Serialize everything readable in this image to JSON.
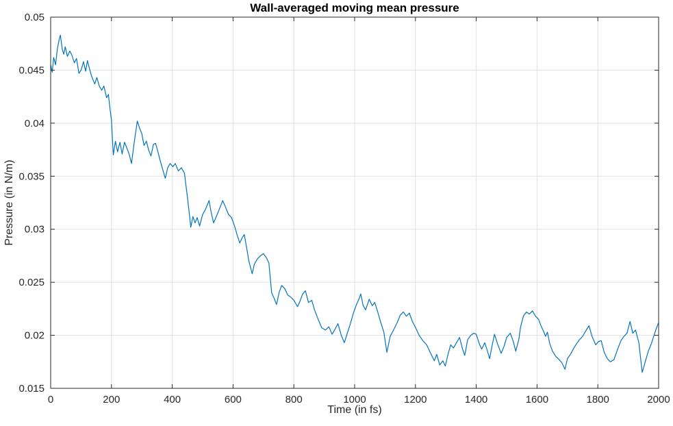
{
  "figure": {
    "background": "#ffffff",
    "axes_color": "#262626",
    "grid_color": "#e0e0e0",
    "line_color": "#0072BD"
  },
  "chart_data": {
    "type": "line",
    "title": "Wall-averaged moving mean pressure",
    "xlabel": "Time (in fs)",
    "ylabel": "Pressure (in N/m)",
    "xlim": [
      0,
      2000
    ],
    "ylim": [
      0.015,
      0.05
    ],
    "grid": "on",
    "legend": "none",
    "x_ticks": [
      {
        "value": 0,
        "label": "0"
      },
      {
        "value": 200,
        "label": "200"
      },
      {
        "value": 400,
        "label": "400"
      },
      {
        "value": 600,
        "label": "600"
      },
      {
        "value": 800,
        "label": "800"
      },
      {
        "value": 1000,
        "label": "1000"
      },
      {
        "value": 1200,
        "label": "1200"
      },
      {
        "value": 1400,
        "label": "1400"
      },
      {
        "value": 1600,
        "label": "1600"
      },
      {
        "value": 1800,
        "label": "1800"
      },
      {
        "value": 2000,
        "label": "2000"
      }
    ],
    "y_ticks": [
      {
        "value": 0.015,
        "label": "0.015"
      },
      {
        "value": 0.02,
        "label": "0.02"
      },
      {
        "value": 0.025,
        "label": "0.025"
      },
      {
        "value": 0.03,
        "label": "0.03"
      },
      {
        "value": 0.035,
        "label": "0.035"
      },
      {
        "value": 0.04,
        "label": "0.04"
      },
      {
        "value": 0.045,
        "label": "0.045"
      },
      {
        "value": 0.05,
        "label": "0.05"
      }
    ],
    "series": [
      {
        "name": "wall-averaged moving mean pressure",
        "color": "#0072BD",
        "points": [
          [
            0,
            0.0455
          ],
          [
            5,
            0.0448
          ],
          [
            10,
            0.0462
          ],
          [
            16,
            0.0455
          ],
          [
            22,
            0.047
          ],
          [
            28,
            0.0479
          ],
          [
            32,
            0.0483
          ],
          [
            38,
            0.047
          ],
          [
            43,
            0.0465
          ],
          [
            48,
            0.0472
          ],
          [
            55,
            0.0463
          ],
          [
            63,
            0.0468
          ],
          [
            70,
            0.0464
          ],
          [
            78,
            0.0457
          ],
          [
            85,
            0.0461
          ],
          [
            93,
            0.0447
          ],
          [
            100,
            0.045
          ],
          [
            108,
            0.0458
          ],
          [
            115,
            0.0449
          ],
          [
            121,
            0.0459
          ],
          [
            127,
            0.0452
          ],
          [
            135,
            0.0444
          ],
          [
            145,
            0.0437
          ],
          [
            152,
            0.0443
          ],
          [
            160,
            0.0435
          ],
          [
            168,
            0.0431
          ],
          [
            175,
            0.0435
          ],
          [
            184,
            0.0424
          ],
          [
            190,
            0.0427
          ],
          [
            195,
            0.0414
          ],
          [
            200,
            0.0403
          ],
          [
            206,
            0.037
          ],
          [
            213,
            0.0383
          ],
          [
            220,
            0.0373
          ],
          [
            228,
            0.0382
          ],
          [
            235,
            0.0371
          ],
          [
            243,
            0.0382
          ],
          [
            250,
            0.0377
          ],
          [
            258,
            0.0371
          ],
          [
            266,
            0.0362
          ],
          [
            274,
            0.038
          ],
          [
            285,
            0.0402
          ],
          [
            293,
            0.0395
          ],
          [
            300,
            0.039
          ],
          [
            307,
            0.0379
          ],
          [
            315,
            0.0383
          ],
          [
            322,
            0.0375
          ],
          [
            330,
            0.0369
          ],
          [
            338,
            0.038
          ],
          [
            345,
            0.0381
          ],
          [
            352,
            0.0374
          ],
          [
            360,
            0.0365
          ],
          [
            370,
            0.0355
          ],
          [
            377,
            0.0348
          ],
          [
            385,
            0.0358
          ],
          [
            393,
            0.0362
          ],
          [
            402,
            0.0359
          ],
          [
            410,
            0.0362
          ],
          [
            420,
            0.0355
          ],
          [
            430,
            0.0358
          ],
          [
            440,
            0.0353
          ],
          [
            450,
            0.033
          ],
          [
            456,
            0.0315
          ],
          [
            461,
            0.0302
          ],
          [
            468,
            0.0312
          ],
          [
            475,
            0.0306
          ],
          [
            482,
            0.0311
          ],
          [
            490,
            0.0303
          ],
          [
            500,
            0.0314
          ],
          [
            508,
            0.0318
          ],
          [
            514,
            0.0322
          ],
          [
            521,
            0.0327
          ],
          [
            528,
            0.0316
          ],
          [
            536,
            0.0306
          ],
          [
            545,
            0.0312
          ],
          [
            555,
            0.0319
          ],
          [
            566,
            0.0327
          ],
          [
            575,
            0.0321
          ],
          [
            585,
            0.0314
          ],
          [
            595,
            0.0311
          ],
          [
            605,
            0.0303
          ],
          [
            612,
            0.0296
          ],
          [
            622,
            0.0287
          ],
          [
            630,
            0.0292
          ],
          [
            637,
            0.0295
          ],
          [
            645,
            0.0282
          ],
          [
            652,
            0.027
          ],
          [
            663,
            0.0258
          ],
          [
            670,
            0.0267
          ],
          [
            680,
            0.0272
          ],
          [
            690,
            0.0275
          ],
          [
            700,
            0.0277
          ],
          [
            710,
            0.0273
          ],
          [
            718,
            0.0268
          ],
          [
            727,
            0.024
          ],
          [
            735,
            0.0235
          ],
          [
            743,
            0.0229
          ],
          [
            752,
            0.0241
          ],
          [
            760,
            0.0247
          ],
          [
            770,
            0.0244
          ],
          [
            780,
            0.0238
          ],
          [
            790,
            0.0236
          ],
          [
            800,
            0.0233
          ],
          [
            812,
            0.0227
          ],
          [
            820,
            0.0232
          ],
          [
            829,
            0.0239
          ],
          [
            838,
            0.0242
          ],
          [
            848,
            0.0231
          ],
          [
            859,
            0.0233
          ],
          [
            868,
            0.0224
          ],
          [
            880,
            0.0215
          ],
          [
            892,
            0.0207
          ],
          [
            904,
            0.0205
          ],
          [
            915,
            0.0208
          ],
          [
            926,
            0.0201
          ],
          [
            936,
            0.0206
          ],
          [
            945,
            0.0211
          ],
          [
            956,
            0.02
          ],
          [
            966,
            0.0193
          ],
          [
            976,
            0.0202
          ],
          [
            986,
            0.0211
          ],
          [
            996,
            0.0221
          ],
          [
            1006,
            0.0229
          ],
          [
            1014,
            0.0234
          ],
          [
            1020,
            0.0239
          ],
          [
            1028,
            0.0228
          ],
          [
            1036,
            0.0224
          ],
          [
            1048,
            0.0234
          ],
          [
            1058,
            0.0228
          ],
          [
            1066,
            0.0231
          ],
          [
            1076,
            0.0222
          ],
          [
            1086,
            0.0212
          ],
          [
            1096,
            0.0203
          ],
          [
            1106,
            0.0184
          ],
          [
            1117,
            0.0199
          ],
          [
            1128,
            0.0205
          ],
          [
            1140,
            0.0212
          ],
          [
            1150,
            0.0219
          ],
          [
            1160,
            0.0222
          ],
          [
            1170,
            0.0218
          ],
          [
            1180,
            0.0221
          ],
          [
            1190,
            0.0213
          ],
          [
            1201,
            0.0207
          ],
          [
            1212,
            0.02
          ],
          [
            1224,
            0.0195
          ],
          [
            1237,
            0.0191
          ],
          [
            1250,
            0.0183
          ],
          [
            1262,
            0.0176
          ],
          [
            1270,
            0.0182
          ],
          [
            1280,
            0.0172
          ],
          [
            1290,
            0.0176
          ],
          [
            1298,
            0.0171
          ],
          [
            1308,
            0.0183
          ],
          [
            1316,
            0.0191
          ],
          [
            1325,
            0.0188
          ],
          [
            1335,
            0.0193
          ],
          [
            1345,
            0.0198
          ],
          [
            1355,
            0.0187
          ],
          [
            1362,
            0.0181
          ],
          [
            1372,
            0.0196
          ],
          [
            1382,
            0.02
          ],
          [
            1392,
            0.0202
          ],
          [
            1400,
            0.0201
          ],
          [
            1410,
            0.0192
          ],
          [
            1418,
            0.0187
          ],
          [
            1428,
            0.0193
          ],
          [
            1436,
            0.0186
          ],
          [
            1444,
            0.0178
          ],
          [
            1452,
            0.019
          ],
          [
            1460,
            0.0201
          ],
          [
            1470,
            0.0192
          ],
          [
            1482,
            0.0183
          ],
          [
            1492,
            0.019
          ],
          [
            1500,
            0.0198
          ],
          [
            1512,
            0.0202
          ],
          [
            1522,
            0.0194
          ],
          [
            1530,
            0.0185
          ],
          [
            1540,
            0.0196
          ],
          [
            1546,
            0.0208
          ],
          [
            1555,
            0.0218
          ],
          [
            1565,
            0.0222
          ],
          [
            1575,
            0.022
          ],
          [
            1585,
            0.0223
          ],
          [
            1595,
            0.0218
          ],
          [
            1605,
            0.0215
          ],
          [
            1613,
            0.0209
          ],
          [
            1621,
            0.0204
          ],
          [
            1628,
            0.0199
          ],
          [
            1634,
            0.0203
          ],
          [
            1642,
            0.0192
          ],
          [
            1651,
            0.0185
          ],
          [
            1662,
            0.018
          ],
          [
            1673,
            0.0177
          ],
          [
            1682,
            0.0174
          ],
          [
            1692,
            0.0168
          ],
          [
            1700,
            0.0178
          ],
          [
            1710,
            0.0182
          ],
          [
            1721,
            0.0188
          ],
          [
            1730,
            0.0192
          ],
          [
            1740,
            0.0196
          ],
          [
            1750,
            0.0199
          ],
          [
            1760,
            0.0204
          ],
          [
            1771,
            0.0209
          ],
          [
            1781,
            0.0199
          ],
          [
            1793,
            0.0191
          ],
          [
            1802,
            0.0194
          ],
          [
            1811,
            0.0195
          ],
          [
            1821,
            0.0184
          ],
          [
            1831,
            0.0178
          ],
          [
            1841,
            0.0175
          ],
          [
            1853,
            0.0177
          ],
          [
            1864,
            0.0186
          ],
          [
            1876,
            0.0195
          ],
          [
            1886,
            0.0199
          ],
          [
            1896,
            0.0202
          ],
          [
            1906,
            0.0213
          ],
          [
            1915,
            0.0202
          ],
          [
            1924,
            0.0205
          ],
          [
            1935,
            0.0193
          ],
          [
            1946,
            0.0165
          ],
          [
            1956,
            0.0175
          ],
          [
            1966,
            0.0185
          ],
          [
            1976,
            0.0192
          ],
          [
            1986,
            0.0201
          ],
          [
            1993,
            0.0207
          ],
          [
            2000,
            0.0212
          ]
        ]
      }
    ]
  }
}
